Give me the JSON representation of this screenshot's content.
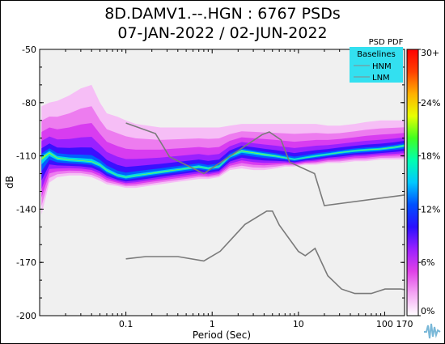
{
  "title": "8D.DAMV1.--.HGN : 6767 PSDs",
  "subtitle": "07-JAN-2022 / 02-JUN-2022",
  "chart_data": {
    "type": "heatmap",
    "xlabel": "Period (Sec)",
    "ylabel": "dB",
    "x_scale": "log",
    "xlim": [
      0.01,
      170
    ],
    "ylim": [
      -200,
      -50
    ],
    "x_tick_labels": [
      "0.1",
      "1",
      "10",
      "100",
      "170"
    ],
    "x_tick_values": [
      0.1,
      1,
      10,
      100,
      170
    ],
    "y_tick_labels": [
      "-50",
      "-80",
      "-110",
      "-140",
      "-170",
      "-200"
    ],
    "y_tick_values": [
      -50,
      -80,
      -110,
      -140,
      -170,
      -200
    ],
    "colorbar": {
      "title": "PSD PDF",
      "ticks": [
        "30+",
        "24%",
        "18%",
        "12%",
        "6%",
        "0%"
      ],
      "tick_values": [
        30,
        24,
        18,
        12,
        6,
        0
      ],
      "colors": [
        "#ffffff",
        "#f4a6f4",
        "#e040e8",
        "#9a20ff",
        "#2a10ff",
        "#0050ff",
        "#00c8ff",
        "#00ffb0",
        "#40ff20",
        "#e8ff00",
        "#ffb000",
        "#ff4000",
        "#ff0000"
      ]
    },
    "legend": {
      "title": "Baselines",
      "placement": "top-right",
      "background": "#33e0f0",
      "entries": [
        "HNM",
        "LNM"
      ]
    },
    "hnm": {
      "x": [
        0.1,
        0.22,
        0.32,
        0.8,
        3.8,
        4.6,
        6.3,
        7.9,
        15.4,
        20,
        354
      ],
      "y": [
        -91.5,
        -97.4,
        -110.5,
        -120,
        -98,
        -96.5,
        -101,
        -113.5,
        -120,
        -138,
        -130
      ]
    },
    "lnm": {
      "x": [
        0.1,
        0.17,
        0.4,
        0.8,
        1.24,
        2.4,
        4.3,
        5,
        6,
        10,
        12,
        15.6,
        21.9,
        31.6,
        45,
        70,
        101,
        154,
        328
      ],
      "y": [
        -168,
        -166.7,
        -166.7,
        -169.2,
        -163.7,
        -148.6,
        -141.1,
        -141.1,
        -149,
        -163.8,
        -166.2,
        -162.1,
        -177.5,
        -185,
        -187.5,
        -187.5,
        -185,
        -185,
        -187.5
      ]
    },
    "pdf_mode": {
      "x": [
        0.0105,
        0.013,
        0.016,
        0.022,
        0.03,
        0.04,
        0.05,
        0.06,
        0.08,
        0.1,
        0.13,
        0.18,
        0.25,
        0.35,
        0.5,
        0.7,
        0.9,
        1.2,
        1.6,
        2.2,
        3,
        4,
        5.5,
        7,
        9,
        12,
        16,
        22,
        30,
        45,
        60,
        90,
        130,
        170
      ],
      "y": [
        -111,
        -108,
        -111,
        -112,
        -112.5,
        -113,
        -115,
        -118,
        -121,
        -122,
        -121,
        -120,
        -119,
        -118,
        -117,
        -116,
        -117,
        -116,
        -110,
        -107,
        -108,
        -109,
        -110,
        -111,
        -112,
        -111,
        -110,
        -109,
        -108,
        -107,
        -106.5,
        -106,
        -105,
        -104
      ]
    },
    "pdf_upper": {
      "x": [
        0.0105,
        0.013,
        0.016,
        0.022,
        0.03,
        0.04,
        0.05,
        0.06,
        0.08,
        0.1,
        0.13,
        0.18,
        0.25,
        0.35,
        0.5,
        0.7,
        0.9,
        1.2,
        1.6,
        2.2,
        3,
        4,
        5.5,
        7,
        9,
        12,
        16,
        22,
        30,
        45,
        60,
        90,
        130,
        170
      ],
      "y": [
        -82,
        -80,
        -79,
        -76,
        -72,
        -70,
        -80,
        -86,
        -88,
        -90,
        -92,
        -93,
        -94,
        -94,
        -94,
        -94,
        -94,
        -94,
        -93,
        -92,
        -92,
        -92,
        -92,
        -92,
        -92,
        -92,
        -92,
        -93,
        -93,
        -92,
        -91,
        -90,
        -90,
        -90
      ]
    },
    "pdf_lower": {
      "x": [
        0.0105,
        0.013,
        0.016,
        0.022,
        0.03,
        0.04,
        0.05,
        0.06,
        0.08,
        0.1,
        0.13,
        0.18,
        0.25,
        0.35,
        0.5,
        0.7,
        0.9,
        1.2,
        1.6,
        2.2,
        3,
        4,
        5.5,
        7,
        9,
        12,
        16,
        22,
        30,
        45,
        60,
        90,
        130,
        170
      ],
      "y": [
        -143,
        -125,
        -122,
        -121,
        -121,
        -122,
        -124,
        -126,
        -127,
        -128,
        -128,
        -127,
        -126,
        -125,
        -124,
        -123,
        -123,
        -122,
        -118,
        -117,
        -118,
        -118,
        -117,
        -116,
        -116,
        -115,
        -115,
        -114,
        -114,
        -113,
        -113,
        -112,
        -112,
        -112
      ]
    }
  }
}
